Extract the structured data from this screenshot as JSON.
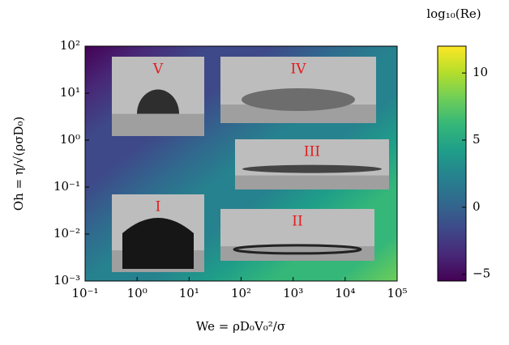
{
  "chart_data": {
    "type": "heatmap",
    "x_label": "We = ρD₀V₀²/σ",
    "y_label": "Oh = η/√(ρσD₀)",
    "x_log": true,
    "y_log": true,
    "xlim": [
      0.1,
      100000
    ],
    "ylim": [
      0.001,
      100
    ],
    "xticks": [
      {
        "value": 0.1,
        "label": "10⁻¹"
      },
      {
        "value": 1,
        "label": "10⁰"
      },
      {
        "value": 10,
        "label": "10¹"
      },
      {
        "value": 100,
        "label": "10²"
      },
      {
        "value": 1000,
        "label": "10³"
      },
      {
        "value": 10000,
        "label": "10⁴"
      },
      {
        "value": 100000,
        "label": "10⁵"
      }
    ],
    "yticks": [
      {
        "value": 0.001,
        "label": "10⁻³"
      },
      {
        "value": 0.01,
        "label": "10⁻²"
      },
      {
        "value": 0.1,
        "label": "10⁻¹"
      },
      {
        "value": 1,
        "label": "10⁰"
      },
      {
        "value": 10,
        "label": "10¹"
      },
      {
        "value": 100,
        "label": "10²"
      }
    ],
    "z_top_left": -5,
    "z_bottom_right": 8,
    "colorbar": {
      "label": "log₁₀(Re)",
      "clim": [
        -5.5,
        12
      ],
      "ticks": [
        {
          "value": -5,
          "label": "−5"
        },
        0,
        5,
        10
      ]
    },
    "insets": [
      "V",
      "IV",
      "III",
      "I",
      "II"
    ]
  }
}
